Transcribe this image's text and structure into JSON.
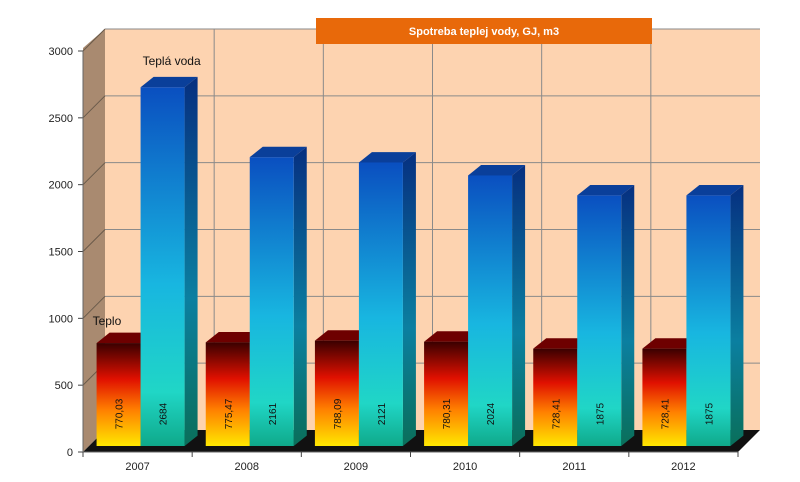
{
  "chart_data": {
    "type": "bar",
    "title": "Spotreba teplej vody, GJ, m3",
    "categories": [
      "2007",
      "2008",
      "2009",
      "2010",
      "2011",
      "2012"
    ],
    "series": [
      {
        "name": "Teplo",
        "values": [
          770.03,
          775.47,
          788.09,
          780.31,
          728.41,
          728.41
        ],
        "labels": [
          "770,03",
          "775,47",
          "788,09",
          "780,31",
          "728,41",
          "728,41"
        ]
      },
      {
        "name": "Teplá voda",
        "values": [
          2684,
          2161,
          2121,
          2024,
          1875,
          1875
        ],
        "labels": [
          "2684",
          "2161",
          "2121",
          "2024",
          "1875",
          "1875"
        ]
      }
    ],
    "yticks": [
      "0",
      "500",
      "1000",
      "1500",
      "2000",
      "2500",
      "3000"
    ],
    "ylim": [
      0,
      3000
    ],
    "grid": true,
    "legend": "series labels above first category",
    "colors": {
      "background_wall": "#fdd3b0",
      "side_wall": "#a98a70",
      "floor": "#111111",
      "title_box": "#e8690a"
    }
  }
}
